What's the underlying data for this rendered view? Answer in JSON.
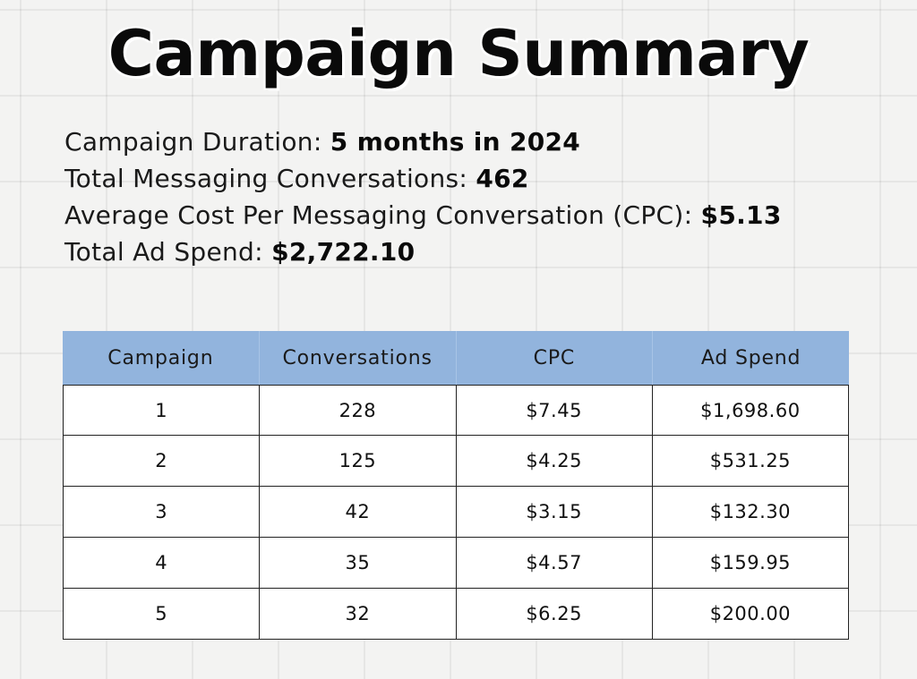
{
  "title": "Campaign Summary",
  "summary": [
    {
      "label": "Campaign Duration: ",
      "value": "5 months in 2024"
    },
    {
      "label": "Total Messaging Conversations: ",
      "value": "462"
    },
    {
      "label": "Average Cost Per Messaging Conversation (CPC): ",
      "value": "$5.13"
    },
    {
      "label": "Total Ad Spend: ",
      "value": "$2,722.10"
    }
  ],
  "table": {
    "headers": [
      "Campaign",
      "Conversations",
      "CPC",
      "Ad Spend"
    ],
    "rows": [
      [
        "1",
        "228",
        "$7.45",
        "$1,698.60"
      ],
      [
        "2",
        "125",
        "$4.25",
        "$531.25"
      ],
      [
        "3",
        "42",
        "$3.15",
        "$132.30"
      ],
      [
        "4",
        "35",
        "$4.57",
        "$159.95"
      ],
      [
        "5",
        "32",
        "$6.25",
        "$200.00"
      ]
    ]
  },
  "colors": {
    "header_background": "#92b4dd",
    "cell_background": "#ffffff",
    "page_background": "#f3f3f2"
  }
}
